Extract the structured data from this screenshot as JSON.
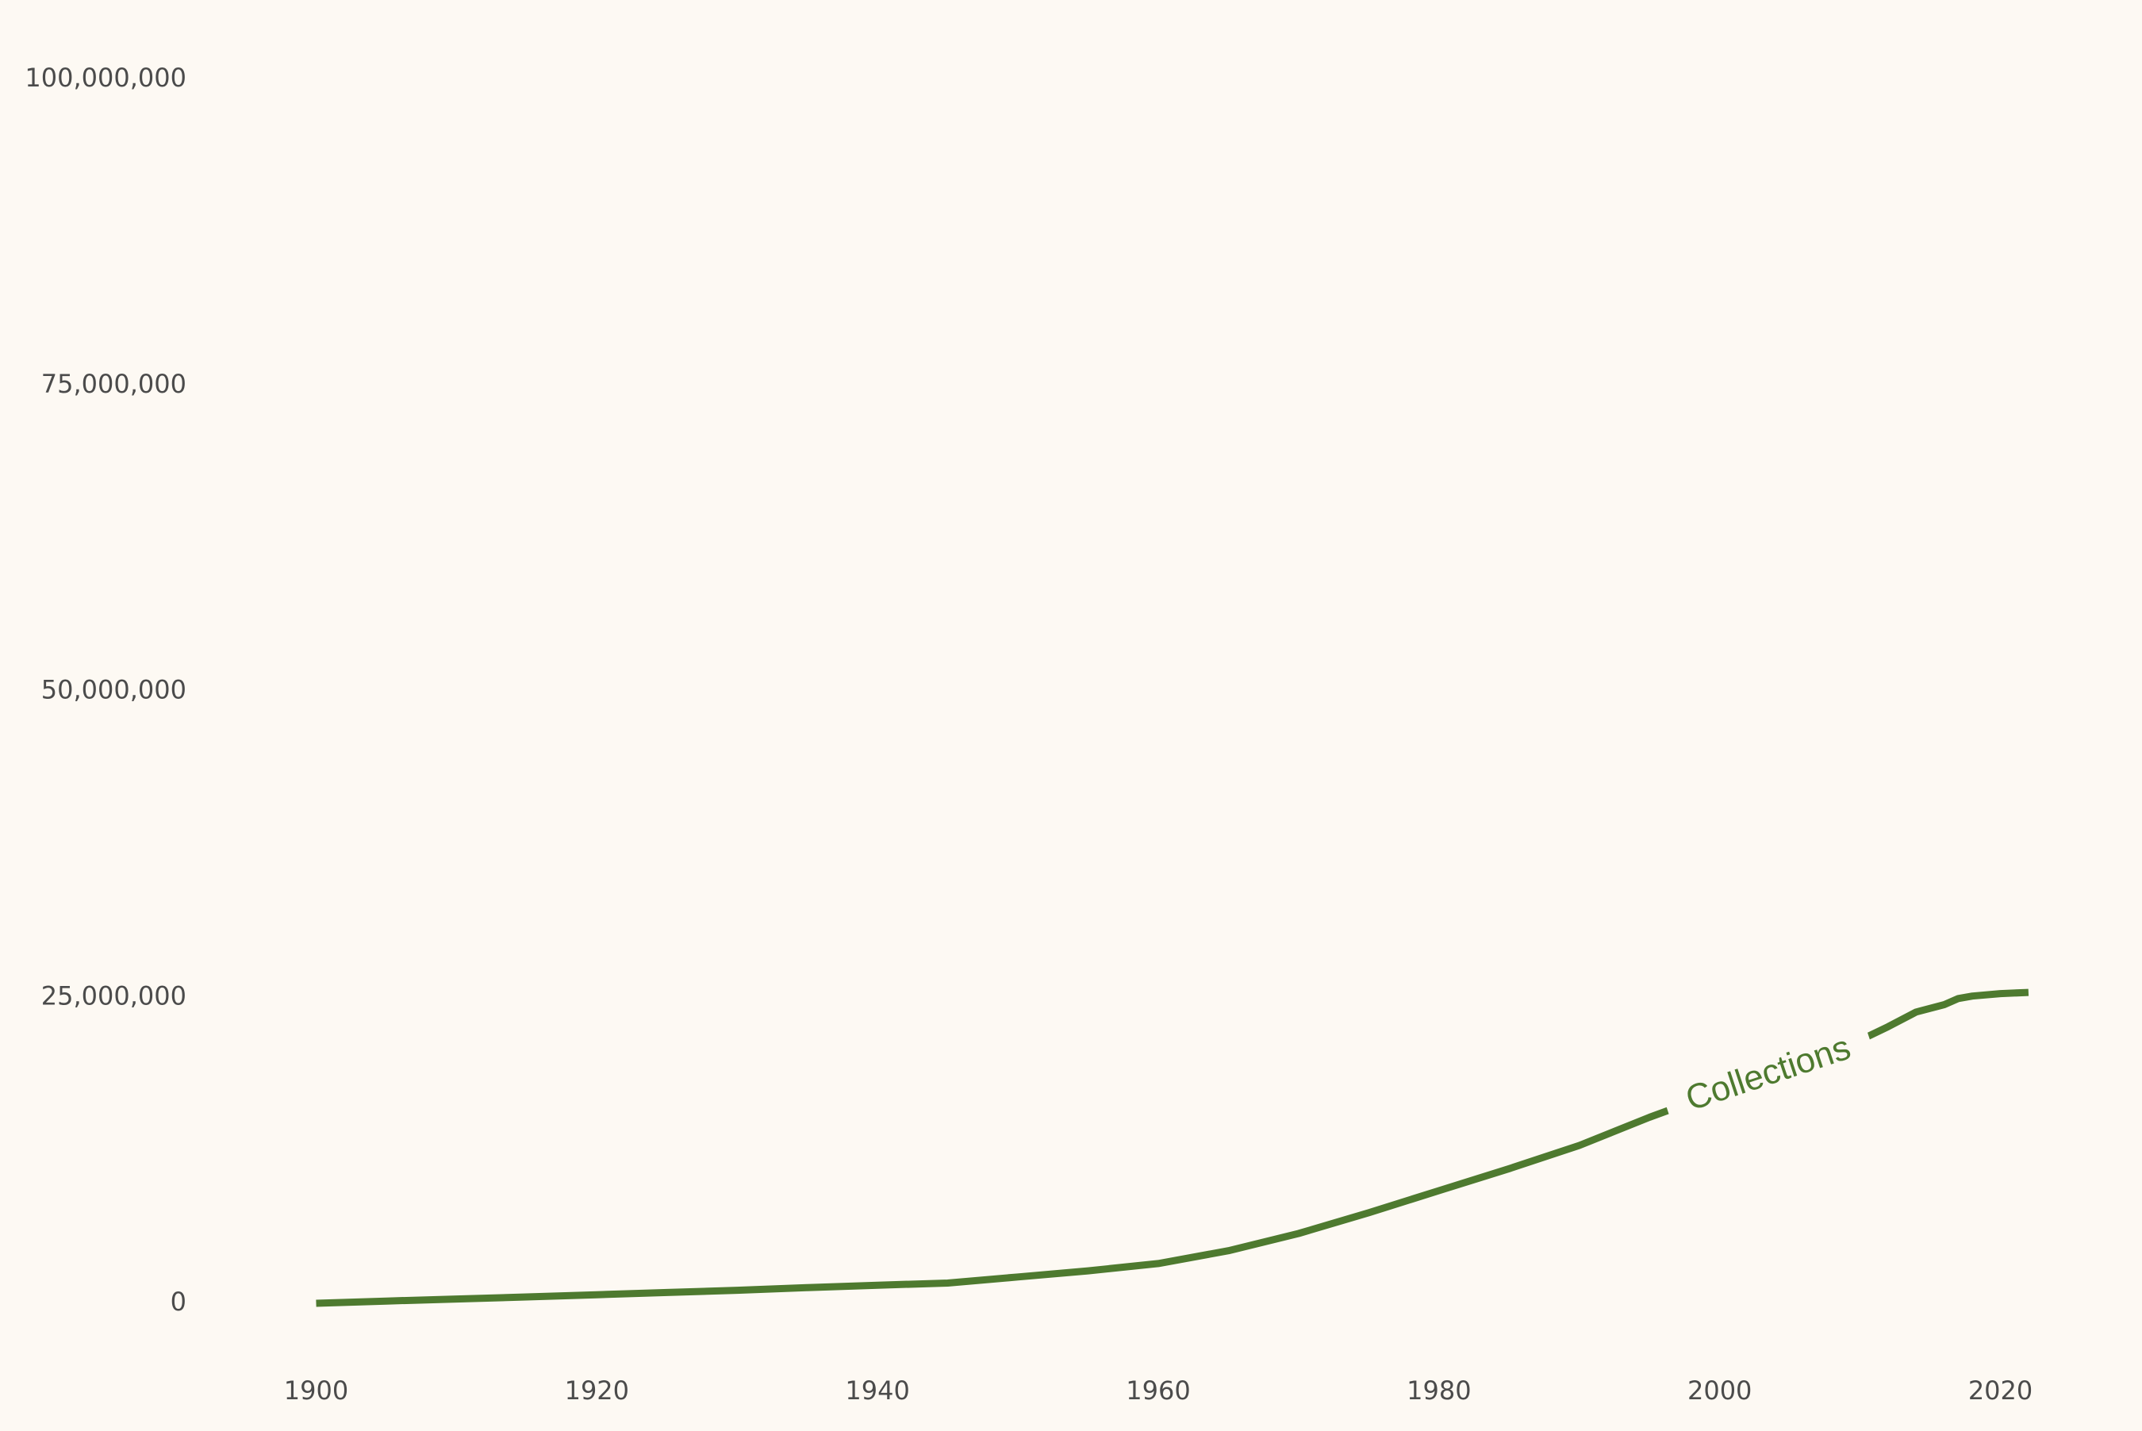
{
  "chart_data": {
    "type": "line",
    "title": "",
    "xlabel": "",
    "ylabel": "",
    "xlim": [
      1895,
      2025
    ],
    "ylim": [
      0,
      100000000
    ],
    "x_ticks": [
      1900,
      1920,
      1940,
      1960,
      1980,
      2000,
      2020
    ],
    "y_ticks": [
      0,
      25000000,
      50000000,
      75000000,
      100000000
    ],
    "x_tick_labels": [
      "1900",
      "1920",
      "1940",
      "1960",
      "1980",
      "2000",
      "2020"
    ],
    "y_tick_labels": [
      "0",
      "25,000,000",
      "50,000,000",
      "75,000,000",
      "100,000,000"
    ],
    "grid": false,
    "legend": "none",
    "series": [
      {
        "name": "Collections",
        "color": "#4e7a2f",
        "label_at": 2003.5,
        "x": [
          1900,
          1905,
          1910,
          1915,
          1920,
          1925,
          1930,
          1935,
          1940,
          1945,
          1950,
          1955,
          1960,
          1965,
          1970,
          1975,
          1980,
          1985,
          1990,
          1995,
          2000,
          2005,
          2010,
          2012,
          2014,
          2016,
          2017,
          2018,
          2020,
          2022
        ],
        "values": [
          0,
          180000,
          350000,
          520000,
          700000,
          880000,
          1060000,
          1280000,
          1480000,
          1650000,
          2150000,
          2650000,
          3250000,
          4300000,
          5700000,
          7400000,
          9200000,
          11000000,
          12900000,
          15200000,
          17300000,
          19200000,
          21500000,
          22600000,
          23800000,
          24400000,
          24900000,
          25100000,
          25300000,
          25400000
        ]
      }
    ]
  }
}
